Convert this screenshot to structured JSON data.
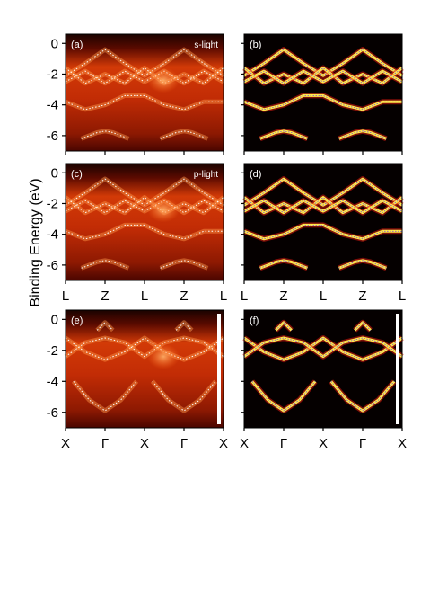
{
  "figure": {
    "ylabel": "Binding Energy (eV)",
    "y_ticks": [
      "0",
      "-2",
      "-4",
      "-6"
    ],
    "x_ticks_row1": [
      "L",
      "Z",
      "L",
      "Z",
      "L"
    ],
    "x_ticks_row2": [
      "L",
      "Z",
      "L",
      "Z",
      "L"
    ],
    "x_ticks_row3": [
      "X",
      "Γ",
      "X",
      "Γ",
      "X"
    ]
  },
  "panels": [
    {
      "id": "a",
      "label": "(a)",
      "light": "s-light",
      "kind": "arpes",
      "path": "LZ"
    },
    {
      "id": "b",
      "label": "(b)",
      "light": "",
      "kind": "curvature",
      "path": "LZ"
    },
    {
      "id": "c",
      "label": "(c)",
      "light": "p-light",
      "kind": "arpes",
      "path": "LZ"
    },
    {
      "id": "d",
      "label": "(d)",
      "light": "",
      "kind": "curvature",
      "path": "LZ"
    },
    {
      "id": "e",
      "label": "(e)",
      "light": "",
      "kind": "arpes",
      "path": "XG"
    },
    {
      "id": "f",
      "label": "(f)",
      "light": "",
      "kind": "curvature",
      "path": "XG"
    }
  ],
  "chart_data": {
    "type": "heatmap",
    "ylim": [
      -7,
      0.6
    ],
    "bands_LZ": [
      {
        "name": "",
        "x": [
          0,
          0.125,
          0.25,
          0.375,
          0.5,
          0.625,
          0.75,
          0.875,
          1
        ],
        "y": [
          -2.1,
          -1.3,
          -0.4,
          -1.3,
          -2.1,
          -1.3,
          -0.4,
          -1.3,
          -2.1
        ]
      },
      {
        "name": "",
        "x": [
          0,
          0.125,
          0.25,
          0.375,
          0.5,
          0.625,
          0.75,
          0.875,
          1
        ],
        "y": [
          -1.6,
          -2.6,
          -2.0,
          -2.6,
          -1.6,
          -2.6,
          -2.0,
          -2.6,
          -1.6
        ]
      },
      {
        "name": "",
        "x": [
          0,
          0.125,
          0.25,
          0.375,
          0.5,
          0.625,
          0.75,
          0.875,
          1
        ],
        "y": [
          -2.5,
          -1.8,
          -2.6,
          -1.8,
          -2.5,
          -1.8,
          -2.6,
          -1.8,
          -2.5
        ]
      },
      {
        "name": "",
        "x": [
          0,
          0.125,
          0.25,
          0.375,
          0.5,
          0.625,
          0.75,
          0.875,
          1
        ],
        "y": [
          -3.8,
          -4.3,
          -4.0,
          -3.4,
          -3.4,
          -4.0,
          -4.3,
          -3.8,
          -3.8
        ]
      },
      {
        "name": "",
        "x": [
          0.1,
          0.2,
          0.25,
          0.3,
          0.4
        ],
        "y": [
          -6.2,
          -5.8,
          -5.7,
          -5.8,
          -6.2
        ]
      },
      {
        "name": "",
        "x": [
          0.6,
          0.7,
          0.75,
          0.8,
          0.9
        ],
        "y": [
          -6.2,
          -5.8,
          -5.7,
          -5.8,
          -6.2
        ]
      }
    ],
    "bands_XG": [
      {
        "name": "",
        "x": [
          0,
          0.125,
          0.25,
          0.375,
          0.5,
          0.625,
          0.75,
          0.875,
          1
        ],
        "y": [
          -1.2,
          -2.1,
          -2.6,
          -2.1,
          -1.2,
          -2.1,
          -2.6,
          -2.1,
          -1.2
        ]
      },
      {
        "name": "",
        "x": [
          0,
          0.125,
          0.25,
          0.375,
          0.5,
          0.625,
          0.75,
          0.875,
          1
        ],
        "y": [
          -2.4,
          -1.5,
          -1.2,
          -1.5,
          -2.4,
          -1.5,
          -1.2,
          -1.5,
          -2.4
        ]
      },
      {
        "name": "",
        "x": [
          0.05,
          0.15,
          0.25,
          0.35,
          0.45
        ],
        "y": [
          -4.0,
          -5.2,
          -5.9,
          -5.2,
          -4.0
        ]
      },
      {
        "name": "",
        "x": [
          0.55,
          0.65,
          0.75,
          0.85,
          0.95
        ],
        "y": [
          -4.0,
          -5.2,
          -5.9,
          -5.2,
          -4.0
        ]
      },
      {
        "name": "",
        "x": [
          0.2,
          0.25,
          0.3
        ],
        "y": [
          -0.7,
          -0.2,
          -0.7
        ]
      },
      {
        "name": "",
        "x": [
          0.7,
          0.75,
          0.8
        ],
        "y": [
          -0.7,
          -0.2,
          -0.7
        ]
      }
    ]
  }
}
